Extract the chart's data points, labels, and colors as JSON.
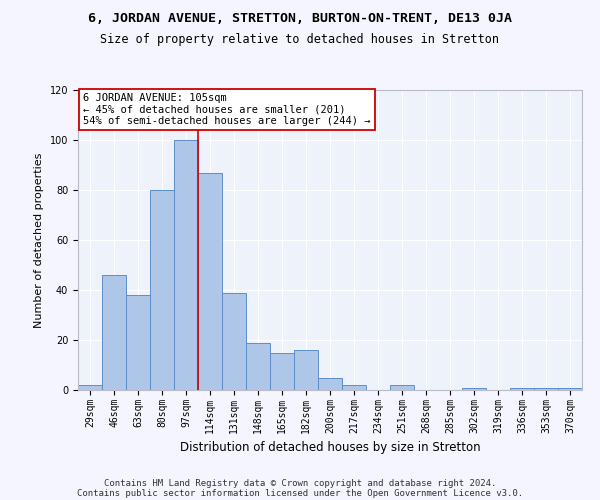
{
  "title_line1": "6, JORDAN AVENUE, STRETTON, BURTON-ON-TRENT, DE13 0JA",
  "title_line2": "Size of property relative to detached houses in Stretton",
  "xlabel": "Distribution of detached houses by size in Stretton",
  "ylabel": "Number of detached properties",
  "categories": [
    "29sqm",
    "46sqm",
    "63sqm",
    "80sqm",
    "97sqm",
    "114sqm",
    "131sqm",
    "148sqm",
    "165sqm",
    "182sqm",
    "200sqm",
    "217sqm",
    "234sqm",
    "251sqm",
    "268sqm",
    "285sqm",
    "302sqm",
    "319sqm",
    "336sqm",
    "353sqm",
    "370sqm"
  ],
  "values": [
    2,
    46,
    38,
    80,
    100,
    87,
    39,
    19,
    15,
    16,
    5,
    2,
    0,
    2,
    0,
    0,
    1,
    0,
    1,
    1,
    1
  ],
  "bar_color": "#aec6e8",
  "bar_edge_color": "#5b8fc9",
  "vline_x_index": 4,
  "vline_color": "#cc0000",
  "ylim": [
    0,
    120
  ],
  "yticks": [
    0,
    20,
    40,
    60,
    80,
    100,
    120
  ],
  "annotation_title": "6 JORDAN AVENUE: 105sqm",
  "annotation_line2": "← 45% of detached houses are smaller (201)",
  "annotation_line3": "54% of semi-detached houses are larger (244) →",
  "annotation_box_color": "#ffffff",
  "annotation_edge_color": "#cc0000",
  "footer_line1": "Contains HM Land Registry data © Crown copyright and database right 2024.",
  "footer_line2": "Contains public sector information licensed under the Open Government Licence v3.0.",
  "bg_color": "#eef2fa",
  "grid_color": "#ffffff",
  "title1_fontsize": 9.5,
  "title2_fontsize": 8.5,
  "xlabel_fontsize": 8.5,
  "ylabel_fontsize": 8,
  "tick_fontsize": 7,
  "annot_fontsize": 7.5,
  "footer_fontsize": 6.5
}
